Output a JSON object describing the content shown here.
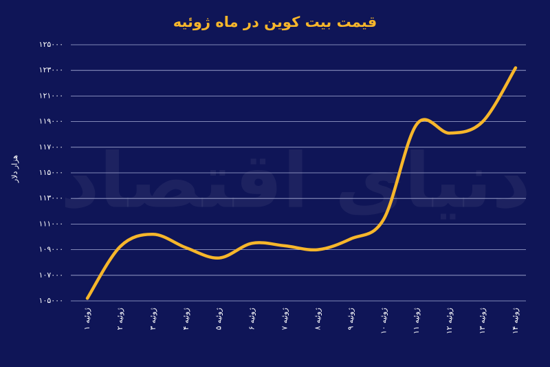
{
  "chart_data": {
    "type": "line",
    "title": "قیمت بیت کوین در ماه ژوئیه",
    "y_label": "هزار دلار",
    "watermark": "دنیای اقتصاد",
    "categories": [
      "۱ ژوئیه",
      "۲ ژوئیه",
      "۳ ژوئیه",
      "۴ ژوئیه",
      "۵ ژوئیه",
      "۶ ژوئیه",
      "۷ ژوئیه",
      "۸ ژوئیه",
      "۹ ژوئیه",
      "۱۰ ژوئیه",
      "۱۱ ژوئیه",
      "۱۲ ژوئیه",
      "۱۳ ژوئیه",
      "۱۴ ژوئیه"
    ],
    "series": [
      {
        "color": "#f6b62b",
        "values": [
          105200,
          109250,
          110200,
          109150,
          108350,
          109500,
          109300,
          109000,
          109850,
          111400,
          118800,
          118100,
          119000,
          123200
        ]
      }
    ],
    "ylim": [
      105000,
      125000
    ],
    "yticks": [
      {
        "value": 105000,
        "label": "۱۰۵۰۰۰"
      },
      {
        "value": 107000,
        "label": "۱۰۷۰۰۰"
      },
      {
        "value": 109000,
        "label": "۱۰۹۰۰۰"
      },
      {
        "value": 111000,
        "label": "۱۱۱۰۰۰"
      },
      {
        "value": 113000,
        "label": "۱۱۳۰۰۰"
      },
      {
        "value": 115000,
        "label": "۱۱۵۰۰۰"
      },
      {
        "value": 117000,
        "label": "۱۱۷۰۰۰"
      },
      {
        "value": 119000,
        "label": "۱۱۹۰۰۰"
      },
      {
        "value": 121000,
        "label": "۱۲۱۰۰۰"
      },
      {
        "value": 123000,
        "label": "۱۲۳۰۰۰"
      },
      {
        "value": 125000,
        "label": "۱۲۵۰۰۰"
      }
    ],
    "grid": true
  }
}
